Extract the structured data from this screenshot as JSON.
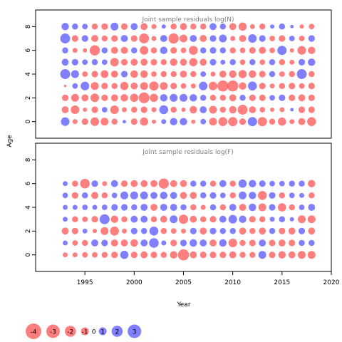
{
  "chart_data": {
    "type": "scatter",
    "xlabel": "Year",
    "ylabel": "Age",
    "xlim": [
      1990,
      2020
    ],
    "ylim": [
      -1.4,
      9.4
    ],
    "xticks": [
      "1995",
      "2000",
      "2005",
      "2010",
      "2015",
      "2020"
    ],
    "xtick_values": [
      1995,
      2000,
      2005,
      2010,
      2015,
      2020
    ],
    "yticks": [
      "0",
      "2",
      "4",
      "6",
      "8"
    ],
    "ytick_values": [
      0,
      2,
      4,
      6,
      8
    ],
    "years": [
      1993,
      1994,
      1995,
      1996,
      1997,
      1998,
      1999,
      2000,
      2001,
      2002,
      2003,
      2004,
      2005,
      2006,
      2007,
      2008,
      2009,
      2010,
      2011,
      2012,
      2013,
      2014,
      2015,
      2016,
      2017,
      2018
    ],
    "panels": [
      {
        "title": "Joint sample residuals log(N)",
        "ages": [
          0,
          1,
          2,
          3,
          4,
          5,
          6,
          7,
          8
        ],
        "residuals": [
          [
            1.2,
            -0.4,
            -0.7,
            -1.2,
            -1.0,
            -0.6,
            0.2,
            -0.7,
            -1.1,
            -0.3,
            0.4,
            0.9,
            0.9,
            -0.3,
            0.5,
            -1.0,
            -1.3,
            -1.4,
            -0.7,
            1.4,
            -1.4,
            -0.6,
            -1.1,
            -0.4,
            -0.8,
            -1.3
          ],
          [
            -0.8,
            -1.2,
            -0.3,
            -0.7,
            0.5,
            -1.2,
            -0.4,
            -0.6,
            -0.7,
            -0.4,
            1.3,
            -0.6,
            -0.3,
            -0.9,
            0.8,
            -1.0,
            -0.6,
            -0.9,
            -1.6,
            -0.8,
            -0.5,
            -0.3,
            -0.4,
            0.2,
            -0.7,
            -0.7
          ],
          [
            -0.7,
            -1.0,
            -0.8,
            -1.2,
            -0.7,
            -0.8,
            -0.9,
            -1.1,
            -1.9,
            -1.1,
            0.9,
            1.0,
            1.0,
            0.9,
            0.6,
            -0.6,
            -0.6,
            -0.8,
            0.6,
            -0.7,
            -0.7,
            0.5,
            0.7,
            -0.7,
            -0.8,
            -0.7
          ],
          [
            -0.1,
            0.5,
            1.2,
            -1.0,
            -0.7,
            -0.6,
            -1.1,
            -0.8,
            -1.0,
            -1.4,
            -1.0,
            -0.7,
            -0.5,
            -0.4,
            1.2,
            -1.2,
            -2.0,
            -2.0,
            -0.9,
            1.3,
            -0.7,
            -0.4,
            -0.6,
            -0.7,
            -0.5,
            -0.7
          ],
          [
            1.6,
            1.0,
            -0.5,
            -0.7,
            -1.0,
            -0.8,
            0.7,
            -0.9,
            -0.9,
            -0.5,
            -0.6,
            -0.6,
            -0.8,
            -0.6,
            0.5,
            -0.4,
            -0.8,
            -0.9,
            -1.1,
            -0.9,
            -0.7,
            0.6,
            -0.5,
            -0.6,
            1.6,
            -0.6
          ],
          [
            0.8,
            0.7,
            0.5,
            0.6,
            0.5,
            -1.2,
            -0.7,
            -0.8,
            -0.8,
            -0.7,
            -0.6,
            -0.9,
            -0.8,
            -1.1,
            -0.8,
            0.7,
            0.4,
            0.6,
            -0.5,
            0.6,
            -0.5,
            0.6,
            -0.6,
            -0.4,
            0.7,
            0.9
          ],
          [
            0.6,
            -0.4,
            -0.3,
            -1.7,
            0.6,
            -0.8,
            -0.8,
            0.6,
            -1.2,
            -0.6,
            0.9,
            -0.7,
            -0.5,
            -1.3,
            0.6,
            0.7,
            0.6,
            -0.6,
            -0.5,
            -0.7,
            -0.8,
            -0.5,
            1.4,
            -0.3,
            -1.2,
            -0.9
          ],
          [
            1.6,
            -0.7,
            0.7,
            -0.8,
            -0.6,
            -0.7,
            0.8,
            -0.7,
            -1.6,
            -0.4,
            0.8,
            -1.7,
            -1.0,
            0.8,
            -0.8,
            0.7,
            1.0,
            -0.4,
            -0.8,
            1.2,
            0.7,
            -0.5,
            -0.7,
            0.5,
            -0.5,
            0.7
          ],
          [
            0.9,
            0.6,
            0.5,
            -0.6,
            -0.7,
            1.0,
            -0.7,
            0.8,
            -0.8,
            -0.4,
            0.3,
            -0.6,
            -0.8,
            -0.6,
            -0.6,
            0.8,
            0.6,
            -0.8,
            -1.1,
            -0.4,
            -0.6,
            0.3,
            0.6,
            0.2,
            -0.3,
            -0.5
          ]
        ]
      },
      {
        "title": "Joint sample residuals log(F)",
        "ages": [
          0,
          1,
          2,
          3,
          4,
          5,
          6
        ],
        "residuals": [
          [
            -0.4,
            -0.4,
            -0.5,
            -0.5,
            -0.6,
            -0.7,
            1.1,
            -0.7,
            -0.8,
            -0.7,
            -0.6,
            -0.9,
            -2.0,
            -0.8,
            -0.7,
            -0.7,
            -0.7,
            -0.8,
            -0.6,
            -0.6,
            1.0,
            -0.7,
            -0.9,
            -0.8,
            -1.0,
            -1.0
          ],
          [
            0.4,
            -0.5,
            -0.6,
            0.8,
            0.7,
            -0.8,
            -0.8,
            -0.9,
            0.8,
            1.5,
            0.4,
            -0.7,
            0.7,
            0.9,
            0.8,
            -0.8,
            0.9,
            -1.2,
            -0.6,
            -0.7,
            0.8,
            -0.7,
            -0.8,
            -0.7,
            0.6,
            0.6
          ],
          [
            -0.8,
            -0.7,
            0.4,
            -0.3,
            -1.0,
            -1.3,
            -0.4,
            0.7,
            0.6,
            1.3,
            -0.6,
            -0.5,
            -0.4,
            0.7,
            -0.8,
            0.7,
            0.6,
            0.6,
            -0.8,
            -0.6,
            -0.8,
            0.6,
            -0.7,
            -0.8,
            0.7,
            -0.8
          ],
          [
            0.4,
            -0.6,
            -0.5,
            -0.7,
            1.6,
            -0.9,
            -0.6,
            0.8,
            0.8,
            -0.6,
            -0.8,
            1.0,
            -1.4,
            -0.8,
            -0.6,
            -0.7,
            0.8,
            1.2,
            0.9,
            -0.7,
            -0.6,
            0.4,
            0.6,
            0.3,
            -1.0,
            -1.0
          ],
          [
            0.4,
            0.4,
            0.5,
            0.4,
            0.5,
            0.7,
            0.7,
            0.6,
            0.8,
            -0.8,
            0.8,
            0.8,
            0.6,
            -0.6,
            -0.4,
            0.6,
            -0.6,
            0.8,
            -0.8,
            0.9,
            -1.0,
            0.7,
            -1.1,
            -0.6,
            0.5,
            0.8
          ],
          [
            0.5,
            -0.7,
            0.6,
            -0.8,
            -0.6,
            0.5,
            1.0,
            1.0,
            1.0,
            0.8,
            0.9,
            0.8,
            -0.8,
            -0.8,
            0.6,
            0.7,
            0.5,
            -0.6,
            1.0,
            0.9,
            -1.3,
            0.7,
            -0.6,
            0.5,
            0.4,
            -0.6
          ],
          [
            0.4,
            -0.6,
            -1.5,
            0.7,
            -0.4,
            0.8,
            -0.7,
            -0.8,
            -0.8,
            -0.8,
            -1.7,
            -0.8,
            -0.8,
            0.6,
            0.6,
            -0.6,
            0.8,
            -0.6,
            1.1,
            0.9,
            0.7,
            0.5,
            0.5,
            0.6,
            0.6,
            -0.9
          ]
        ]
      }
    ],
    "legend": [
      {
        "label": "-4",
        "value": -4
      },
      {
        "label": "-3",
        "value": -3
      },
      {
        "label": "-2",
        "value": -2
      },
      {
        "label": "-1",
        "value": -1
      },
      {
        "label": "0",
        "value": 0
      },
      {
        "label": "1",
        "value": 1
      },
      {
        "label": "2",
        "value": 2
      },
      {
        "label": "3",
        "value": 3
      }
    ],
    "colors": {
      "negative": "#ff4d4d",
      "positive": "#4d4dff",
      "title": "#808080",
      "axis": "#000000"
    }
  }
}
